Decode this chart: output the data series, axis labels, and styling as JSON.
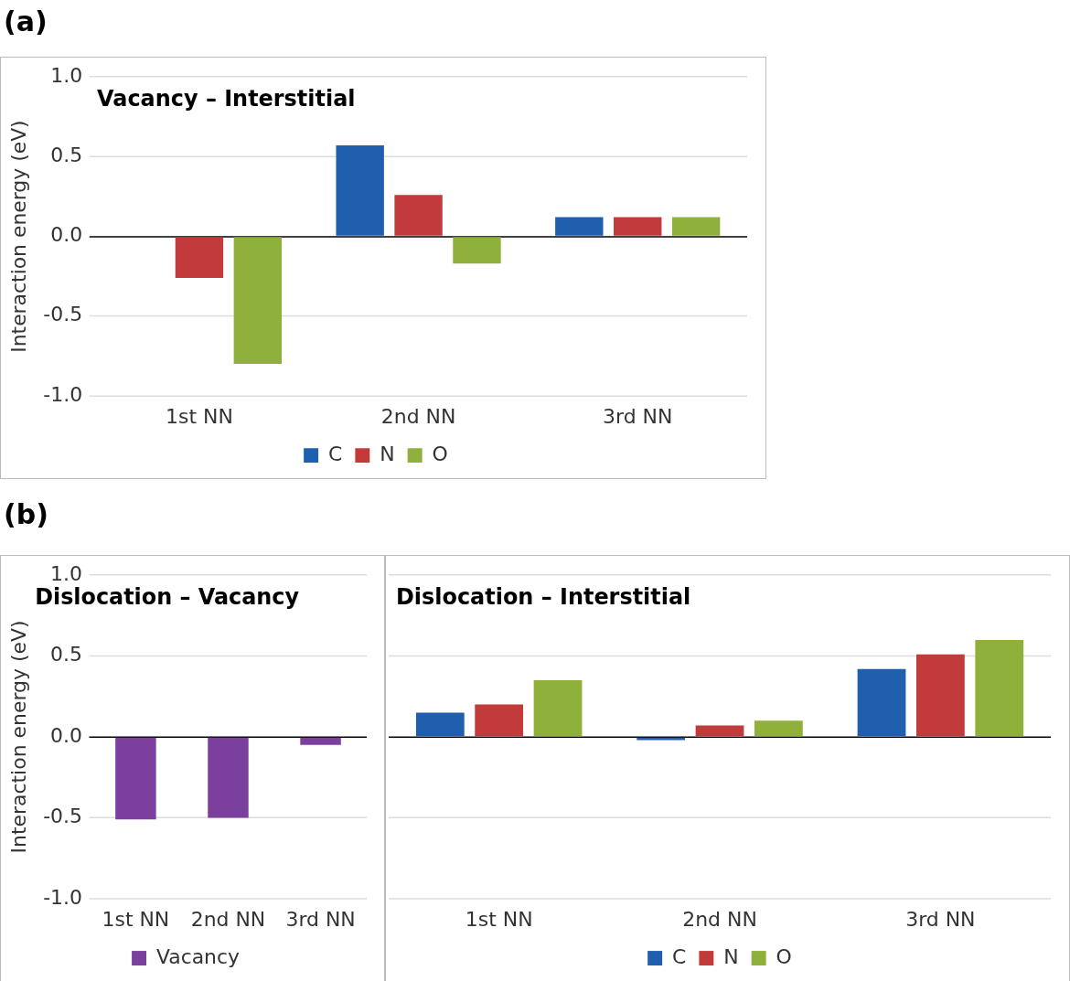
{
  "chart_data": [
    {
      "type": "bar",
      "title": "Vacancy – Interstitial",
      "ylabel": "Interaction energy (eV)",
      "annotations": [
        "(a)"
      ],
      "categories": [
        "1st NN",
        "2nd NN",
        "3rd NN"
      ],
      "series": [
        {
          "name": "C",
          "color": "#1f5fad",
          "values": [
            0.0,
            0.57,
            0.12
          ]
        },
        {
          "name": "N",
          "color": "#c23b3b",
          "values": [
            -0.26,
            0.26,
            0.12
          ]
        },
        {
          "name": "O",
          "color": "#8fb13c",
          "values": [
            -0.8,
            -0.17,
            0.12
          ]
        }
      ],
      "ylim": [
        -1.0,
        1.0
      ],
      "yticks": [
        {
          "value": -1,
          "label": "-1.0"
        },
        {
          "value": -0.5,
          "label": "-0.5"
        },
        {
          "value": 0,
          "label": "0.0"
        },
        {
          "value": 0.5,
          "label": "0.5"
        },
        {
          "value": 1,
          "label": "1.0"
        }
      ],
      "grid": "y",
      "legend": "bottom"
    },
    {
      "type": "bar",
      "title": "Dislocation – Vacancy",
      "ylabel": "Interaction energy (eV)",
      "annotations": [
        "(b)"
      ],
      "categories": [
        "1st NN",
        "2nd NN",
        "3rd NN"
      ],
      "series": [
        {
          "name": "Vacancy",
          "color": "#7b3f9e",
          "values": [
            -0.51,
            -0.5,
            -0.05
          ]
        }
      ],
      "ylim": [
        -1.0,
        1.0
      ],
      "yticks": [
        {
          "value": -1,
          "label": "-1.0"
        },
        {
          "value": -0.5,
          "label": "-0.5"
        },
        {
          "value": 0,
          "label": "0.0"
        },
        {
          "value": 0.5,
          "label": "0.5"
        },
        {
          "value": 1,
          "label": "1.0"
        }
      ],
      "grid": "y",
      "legend": "bottom"
    },
    {
      "type": "bar",
      "title": "Dislocation – Interstitial",
      "categories": [
        "1st NN",
        "2nd NN",
        "3rd NN"
      ],
      "series": [
        {
          "name": "C",
          "color": "#1f5fad",
          "values": [
            0.15,
            -0.02,
            0.42
          ]
        },
        {
          "name": "N",
          "color": "#c23b3b",
          "values": [
            0.2,
            0.07,
            0.51
          ]
        },
        {
          "name": "O",
          "color": "#8fb13c",
          "values": [
            0.35,
            0.1,
            0.6
          ]
        }
      ],
      "ylim": [
        -1.0,
        1.0
      ],
      "yticks": [
        -1,
        -0.5,
        0,
        0.5,
        1
      ],
      "tick_labels": "x",
      "grid": "y",
      "legend": "bottom"
    }
  ]
}
